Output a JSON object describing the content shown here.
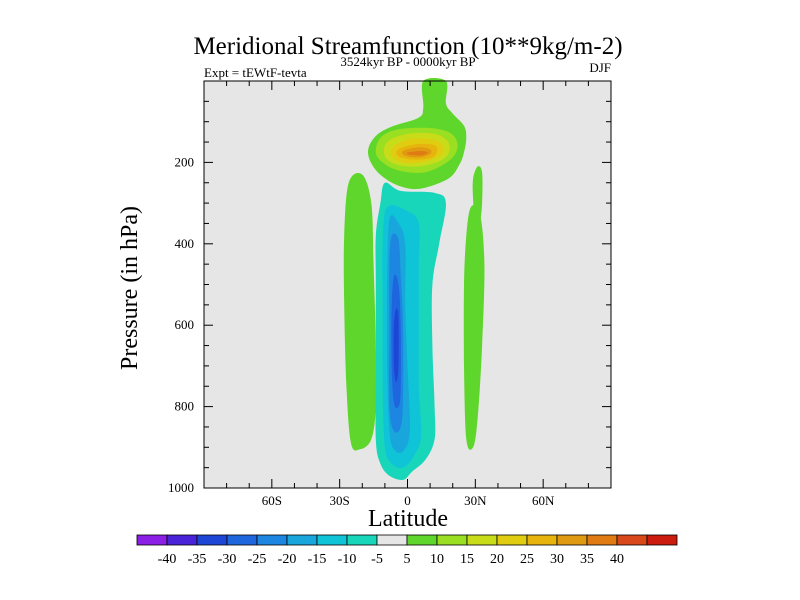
{
  "chart_data": {
    "type": "contour",
    "title": "Meridional Streamfunction (10**9kg/m-2)",
    "left_label": "Expt = tEWtF-tevta",
    "center_label": "3524kyr BP - 0000kyr BP",
    "right_label": "DJF",
    "xlabel": "Latitude",
    "ylabel": "Pressure (in hPa)",
    "xlim": [
      -90,
      90
    ],
    "ylim": [
      1000,
      0
    ],
    "x_ticks": [
      {
        "value": -60,
        "label": "60S"
      },
      {
        "value": -30,
        "label": "30S"
      },
      {
        "value": 0,
        "label": "0"
      },
      {
        "value": 30,
        "label": "30N"
      },
      {
        "value": 60,
        "label": "60N"
      }
    ],
    "y_ticks": [
      {
        "value": 200,
        "label": "200"
      },
      {
        "value": 400,
        "label": "400"
      },
      {
        "value": 600,
        "label": "600"
      },
      {
        "value": 800,
        "label": "800"
      },
      {
        "value": 1000,
        "label": "1000"
      }
    ],
    "background_color": "#e6e6e6",
    "colorbar": {
      "levels": [
        -40,
        -35,
        -30,
        -25,
        -20,
        -15,
        -10,
        -5,
        5,
        10,
        15,
        20,
        25,
        30,
        35,
        40
      ],
      "labels": [
        "-40",
        "-35",
        "-30",
        "-25",
        "-20",
        "-15",
        "-10",
        "-5",
        "5",
        "10",
        "15",
        "20",
        "25",
        "30",
        "35",
        "40"
      ],
      "colors": [
        "#8c1fe6",
        "#4a22d8",
        "#1e46d6",
        "#1e66dd",
        "#1c86e0",
        "#18a6dc",
        "#10c4d8",
        "#18d6ba",
        "#e6e6e6",
        "#5fd62c",
        "#9adf22",
        "#c8dc1a",
        "#e0cc10",
        "#e6b40c",
        "#e09a12",
        "#e07a12",
        "#d8481a",
        "#cc1c10"
      ]
    },
    "regions": [
      {
        "level": "5",
        "color": "#5fd62c",
        "desc": "upper tropospheric cap",
        "polygon": [
          [
            7,
            0
          ],
          [
            17,
            0
          ],
          [
            17,
            55
          ],
          [
            20,
            80
          ],
          [
            25,
            110
          ],
          [
            26,
            140
          ],
          [
            25,
            175
          ],
          [
            23,
            205
          ],
          [
            18,
            240
          ],
          [
            5,
            265
          ],
          [
            -5,
            255
          ],
          [
            -13,
            225
          ],
          [
            -17,
            190
          ],
          [
            -17,
            160
          ],
          [
            -13,
            130
          ],
          [
            -6,
            110
          ],
          [
            5,
            90
          ],
          [
            7,
            65
          ]
        ]
      },
      {
        "level": "10",
        "color": "#9adf22",
        "polygon": [
          [
            -12,
            140
          ],
          [
            -5,
            120
          ],
          [
            8,
            115
          ],
          [
            18,
            125
          ],
          [
            22,
            150
          ],
          [
            21,
            180
          ],
          [
            16,
            205
          ],
          [
            7,
            225
          ],
          [
            -4,
            220
          ],
          [
            -11,
            200
          ],
          [
            -14,
            175
          ]
        ]
      },
      {
        "level": "15",
        "color": "#c8dc1a",
        "polygon": [
          [
            -9,
            150
          ],
          [
            0,
            130
          ],
          [
            12,
            130
          ],
          [
            18,
            150
          ],
          [
            18,
            180
          ],
          [
            13,
            200
          ],
          [
            4,
            210
          ],
          [
            -5,
            205
          ],
          [
            -10,
            185
          ]
        ]
      },
      {
        "level": "20",
        "color": "#e0cc10",
        "polygon": [
          [
            -6,
            160
          ],
          [
            2,
            142
          ],
          [
            12,
            145
          ],
          [
            16,
            165
          ],
          [
            14,
            185
          ],
          [
            6,
            200
          ],
          [
            -2,
            200
          ],
          [
            -7,
            185
          ]
        ]
      },
      {
        "level": "25",
        "color": "#e6b40c",
        "polygon": [
          [
            -4,
            168
          ],
          [
            4,
            155
          ],
          [
            12,
            158
          ],
          [
            13,
            175
          ],
          [
            10,
            190
          ],
          [
            2,
            193
          ],
          [
            -4,
            185
          ]
        ]
      },
      {
        "level": "30",
        "color": "#e09a12",
        "polygon": [
          [
            -2,
            172
          ],
          [
            5,
            163
          ],
          [
            10,
            168
          ],
          [
            10,
            180
          ],
          [
            5,
            188
          ],
          [
            -1,
            184
          ]
        ]
      },
      {
        "level": "35",
        "color": "#e07a12",
        "polygon": [
          [
            0,
            176
          ],
          [
            6,
            172
          ],
          [
            9,
            176
          ],
          [
            6,
            183
          ],
          [
            1,
            181
          ]
        ]
      },
      {
        "level": "5",
        "color": "#5fd62c",
        "desc": "southern subtropical band",
        "polygon": [
          [
            -26,
            250
          ],
          [
            -20,
            230
          ],
          [
            -16,
            300
          ],
          [
            -15,
            450
          ],
          [
            -14,
            650
          ],
          [
            -14,
            800
          ],
          [
            -16,
            880
          ],
          [
            -21,
            905
          ],
          [
            -25,
            890
          ],
          [
            -27,
            750
          ],
          [
            -28,
            550
          ],
          [
            -28,
            380
          ]
        ]
      },
      {
        "level": "5",
        "color": "#5fd62c",
        "desc": "northern thin band",
        "polygon": [
          [
            31,
            210
          ],
          [
            33,
            225
          ],
          [
            33,
            300
          ],
          [
            32,
            345
          ],
          [
            30,
            350
          ],
          [
            29,
            290
          ],
          [
            29,
            240
          ]
        ]
      },
      {
        "level": "5",
        "color": "#5fd62c",
        "desc": "northern band",
        "polygon": [
          [
            28,
            310
          ],
          [
            32,
            325
          ],
          [
            34,
            450
          ],
          [
            33,
            650
          ],
          [
            31,
            830
          ],
          [
            29,
            900
          ],
          [
            26,
            880
          ],
          [
            25,
            700
          ],
          [
            25,
            500
          ],
          [
            26,
            380
          ]
        ]
      },
      {
        "level": "-5",
        "color": "#18d6ba",
        "desc": "tropical cell",
        "polygon": [
          [
            -10,
            250
          ],
          [
            -3,
            270
          ],
          [
            12,
            275
          ],
          [
            17,
            300
          ],
          [
            14,
            400
          ],
          [
            11,
            500
          ],
          [
            11,
            650
          ],
          [
            12,
            800
          ],
          [
            12,
            880
          ],
          [
            8,
            930
          ],
          [
            2,
            960
          ],
          [
            -2,
            980
          ],
          [
            -8,
            970
          ],
          [
            -12,
            940
          ],
          [
            -14,
            880
          ],
          [
            -14,
            700
          ],
          [
            -14,
            500
          ],
          [
            -14,
            380
          ],
          [
            -12,
            300
          ]
        ]
      },
      {
        "level": "-10",
        "color": "#10c4d8",
        "polygon": [
          [
            -9,
            310
          ],
          [
            0,
            320
          ],
          [
            5,
            350
          ],
          [
            5,
            450
          ],
          [
            5,
            600
          ],
          [
            5,
            750
          ],
          [
            6,
            870
          ],
          [
            3,
            920
          ],
          [
            -2,
            950
          ],
          [
            -7,
            940
          ],
          [
            -10,
            900
          ],
          [
            -11,
            750
          ],
          [
            -11,
            550
          ],
          [
            -11,
            400
          ]
        ]
      },
      {
        "level": "-15",
        "color": "#18a6dc",
        "polygon": [
          [
            -8,
            340
          ],
          [
            -4,
            350
          ],
          [
            -1,
            400
          ],
          [
            -1,
            550
          ],
          [
            0,
            700
          ],
          [
            1,
            860
          ],
          [
            -2,
            910
          ],
          [
            -6,
            905
          ],
          [
            -8,
            860
          ],
          [
            -9,
            700
          ],
          [
            -9,
            500
          ]
        ]
      },
      {
        "level": "-20",
        "color": "#1c86e0",
        "polygon": [
          [
            -7,
            380
          ],
          [
            -4,
            390
          ],
          [
            -3,
            480
          ],
          [
            -2,
            600
          ],
          [
            -2,
            780
          ],
          [
            -3,
            850
          ],
          [
            -6,
            860
          ],
          [
            -8,
            800
          ],
          [
            -8,
            600
          ],
          [
            -8,
            450
          ]
        ]
      },
      {
        "level": "-25",
        "color": "#1e66dd",
        "polygon": [
          [
            -6,
            480
          ],
          [
            -4,
            500
          ],
          [
            -3,
            600
          ],
          [
            -3,
            760
          ],
          [
            -4,
            800
          ],
          [
            -6,
            790
          ],
          [
            -7,
            700
          ],
          [
            -7,
            560
          ]
        ]
      },
      {
        "level": "-30",
        "color": "#1e46d6",
        "polygon": [
          [
            -5,
            560
          ],
          [
            -4,
            580
          ],
          [
            -4,
            700
          ],
          [
            -5,
            740
          ],
          [
            -6,
            700
          ],
          [
            -6,
            600
          ]
        ]
      }
    ]
  }
}
